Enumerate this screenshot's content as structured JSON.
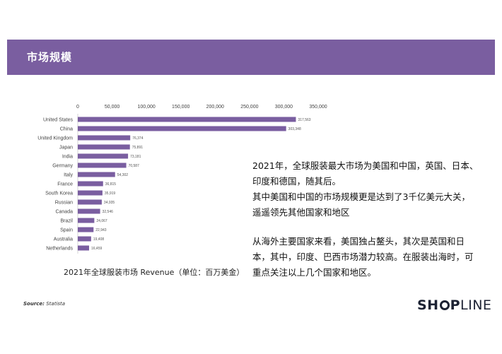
{
  "header": {
    "title": "市场规模"
  },
  "chart_data": {
    "type": "bar",
    "orientation": "horizontal",
    "caption": "2021年全球服装市场 Revenue（单位：百万美金）",
    "categories": [
      "United States",
      "China",
      "United Kingdom",
      "Japan",
      "India",
      "Germany",
      "Italy",
      "France",
      "South Korea",
      "Russian",
      "Canada",
      "Brazil",
      "Spain",
      "Australia",
      "Netherlands"
    ],
    "values": [
      317563,
      303348,
      76374,
      75891,
      73181,
      70587,
      54302,
      36815,
      35919,
      34935,
      32546,
      24067,
      22943,
      19408,
      16459
    ],
    "value_labels": [
      "317,563",
      "303,348",
      "76,374",
      "75,891",
      "73,181",
      "70,587",
      "54,302",
      "36,815",
      "35,919",
      "34,935",
      "32,546",
      "24,067",
      "22,943",
      "19,408",
      "16,459"
    ],
    "xticks": [
      "0",
      "50,000",
      "100,000",
      "150,000",
      "200,000",
      "250,000",
      "300,000",
      "350,000"
    ],
    "xlim": [
      0,
      350000
    ],
    "axis_position": "top",
    "bar_color": "#7a5ea0"
  },
  "text": {
    "p1": "2021年，全球服装最大市场为美国和中国，英国、日本、印度和德国，随其后。",
    "p2": "其中美国和中国的市场规模更是达到了3千亿美元大关，遥遥领先其他国家和地区",
    "p3": "从海外主要国家来看，美国独占鳌头，其次是英国和日本，其中，印度、巴西市场潜力较高。在服装出海时，可重点关注以上几个国家和地区。"
  },
  "source": {
    "label": "Source:",
    "value": "Statista"
  },
  "logo": {
    "part1": "SH",
    "part2": "P",
    "part3": "LINE"
  },
  "colors": {
    "brand": "#7a5ea0",
    "logo": "#1c2233"
  }
}
